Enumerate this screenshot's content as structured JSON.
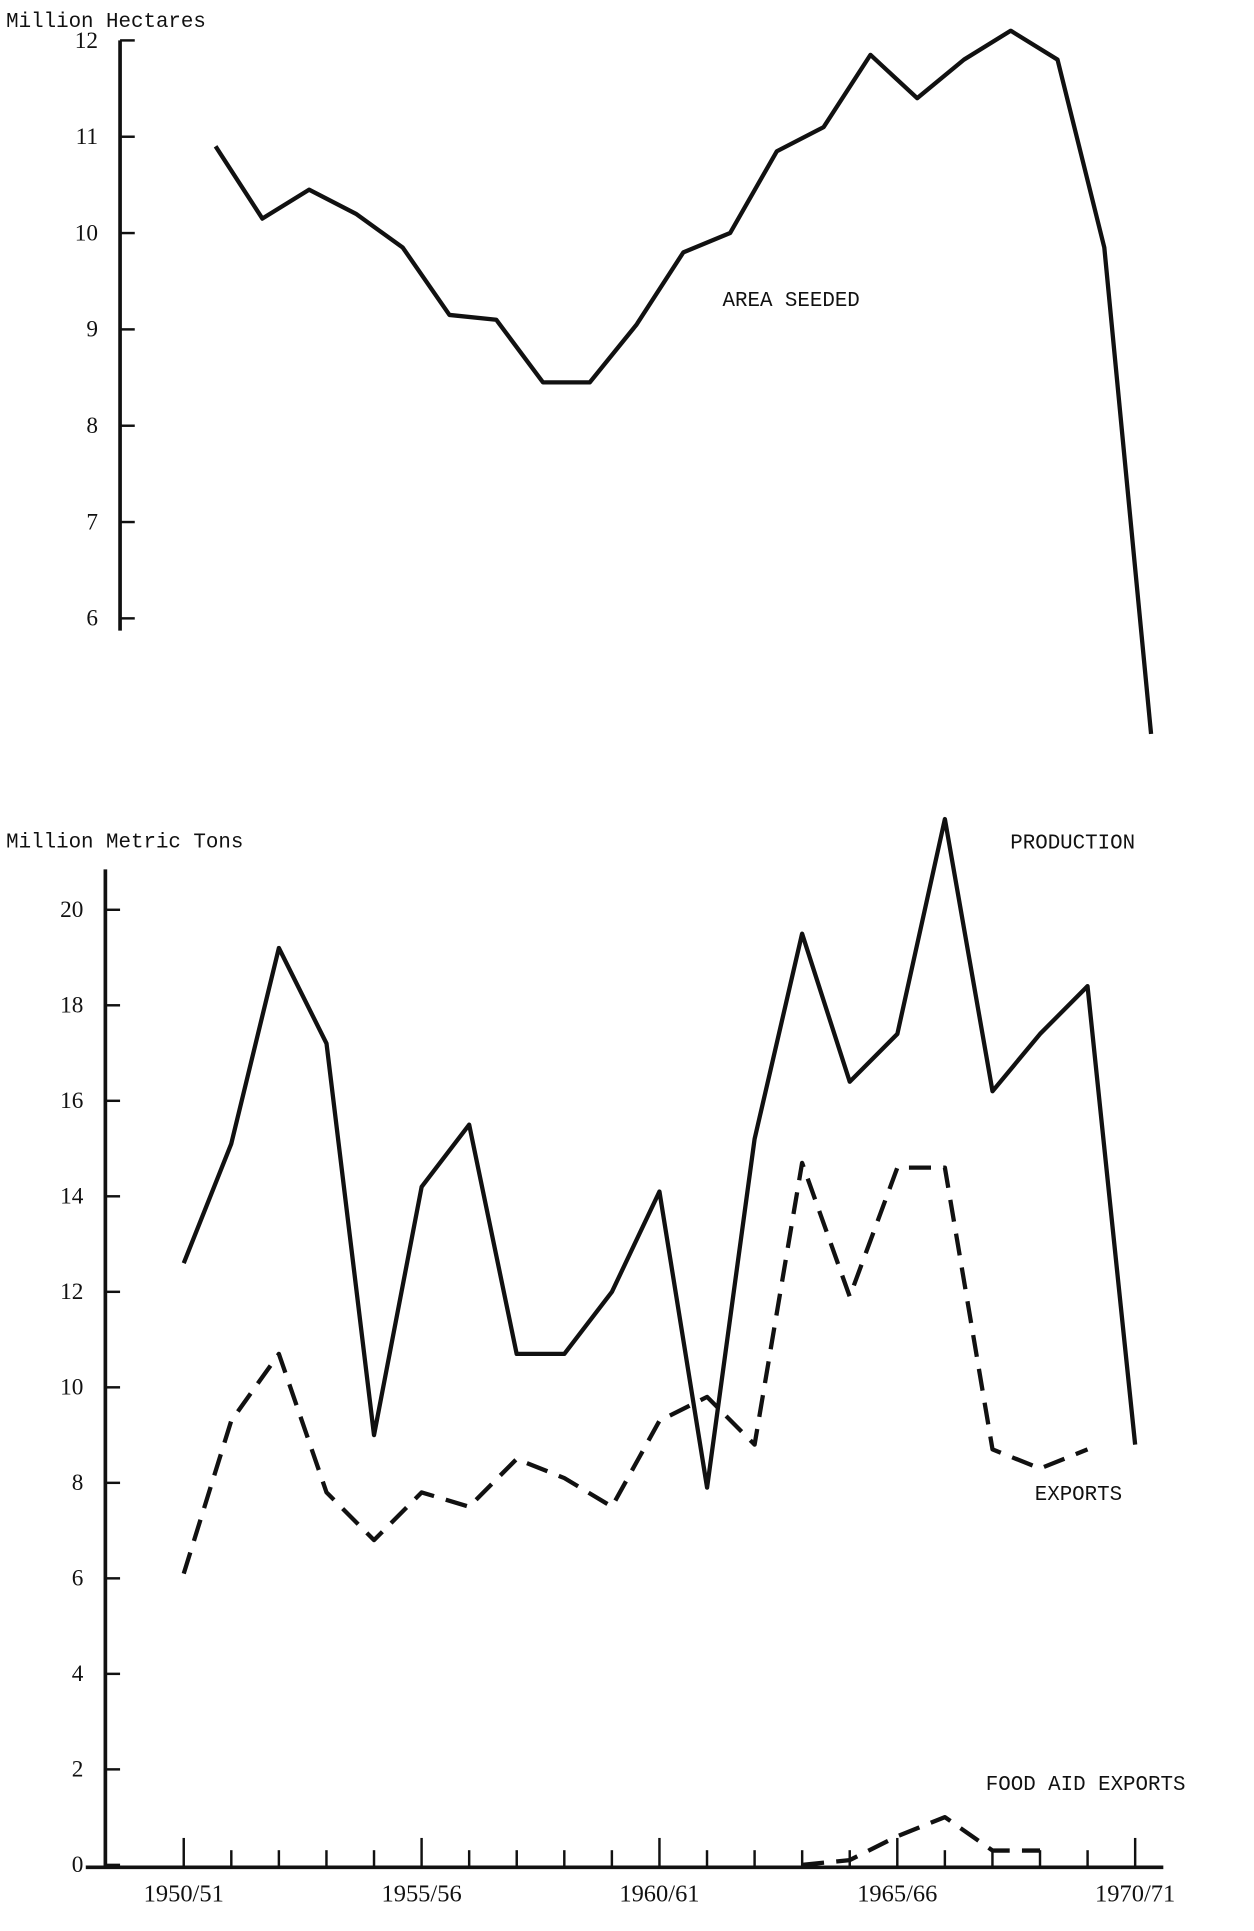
{
  "chart_data": [
    {
      "type": "line",
      "y_label": "Million Hectares",
      "ylim": [
        6,
        12
      ],
      "yticks": [
        6,
        7,
        8,
        9,
        10,
        11,
        12
      ],
      "series": [
        {
          "name": "AREA SEEDED",
          "color": "#111111",
          "dash": "solid",
          "values": [
            10.9,
            10.15,
            10.45,
            10.2,
            9.85,
            9.15,
            9.1,
            8.45,
            8.45,
            9.05,
            9.8,
            10.0,
            10.85,
            11.1,
            11.85,
            11.4,
            11.8,
            12.1,
            11.8,
            9.85,
            4.8
          ]
        }
      ]
    },
    {
      "type": "line",
      "y_label": "Million Metric Tons",
      "categories": [
        "1950/51",
        null,
        null,
        null,
        null,
        "1955/56",
        null,
        null,
        null,
        null,
        "1960/61",
        null,
        null,
        null,
        null,
        "1965/66",
        null,
        null,
        null,
        null,
        "1970/71"
      ],
      "ylim": [
        0,
        20
      ],
      "yticks": [
        0,
        2,
        4,
        6,
        8,
        10,
        12,
        14,
        16,
        18,
        20
      ],
      "series": [
        {
          "name": "PRODUCTION",
          "color": "#111111",
          "dash": "solid",
          "values": [
            12.6,
            15.1,
            19.2,
            17.2,
            9.0,
            14.2,
            15.5,
            10.7,
            10.7,
            12.0,
            14.1,
            7.9,
            15.2,
            19.5,
            16.4,
            17.4,
            21.9,
            16.2,
            17.4,
            18.4,
            8.8
          ]
        },
        {
          "name": "EXPORTS",
          "color": "#111111",
          "dash": "dashed",
          "values": [
            6.1,
            9.3,
            10.7,
            7.8,
            6.8,
            7.8,
            7.5,
            8.5,
            8.1,
            7.5,
            9.3,
            9.8,
            8.8,
            14.7,
            11.9,
            14.6,
            14.6,
            8.7,
            8.3,
            8.7,
            null
          ]
        },
        {
          "name": "FOOD AID EXPORTS",
          "color": "#111111",
          "dash": "dashed",
          "values": [
            null,
            null,
            null,
            null,
            null,
            null,
            null,
            null,
            null,
            null,
            null,
            null,
            null,
            0,
            0.1,
            0.6,
            1.0,
            0.3,
            0.3,
            null,
            null
          ]
        }
      ]
    }
  ]
}
